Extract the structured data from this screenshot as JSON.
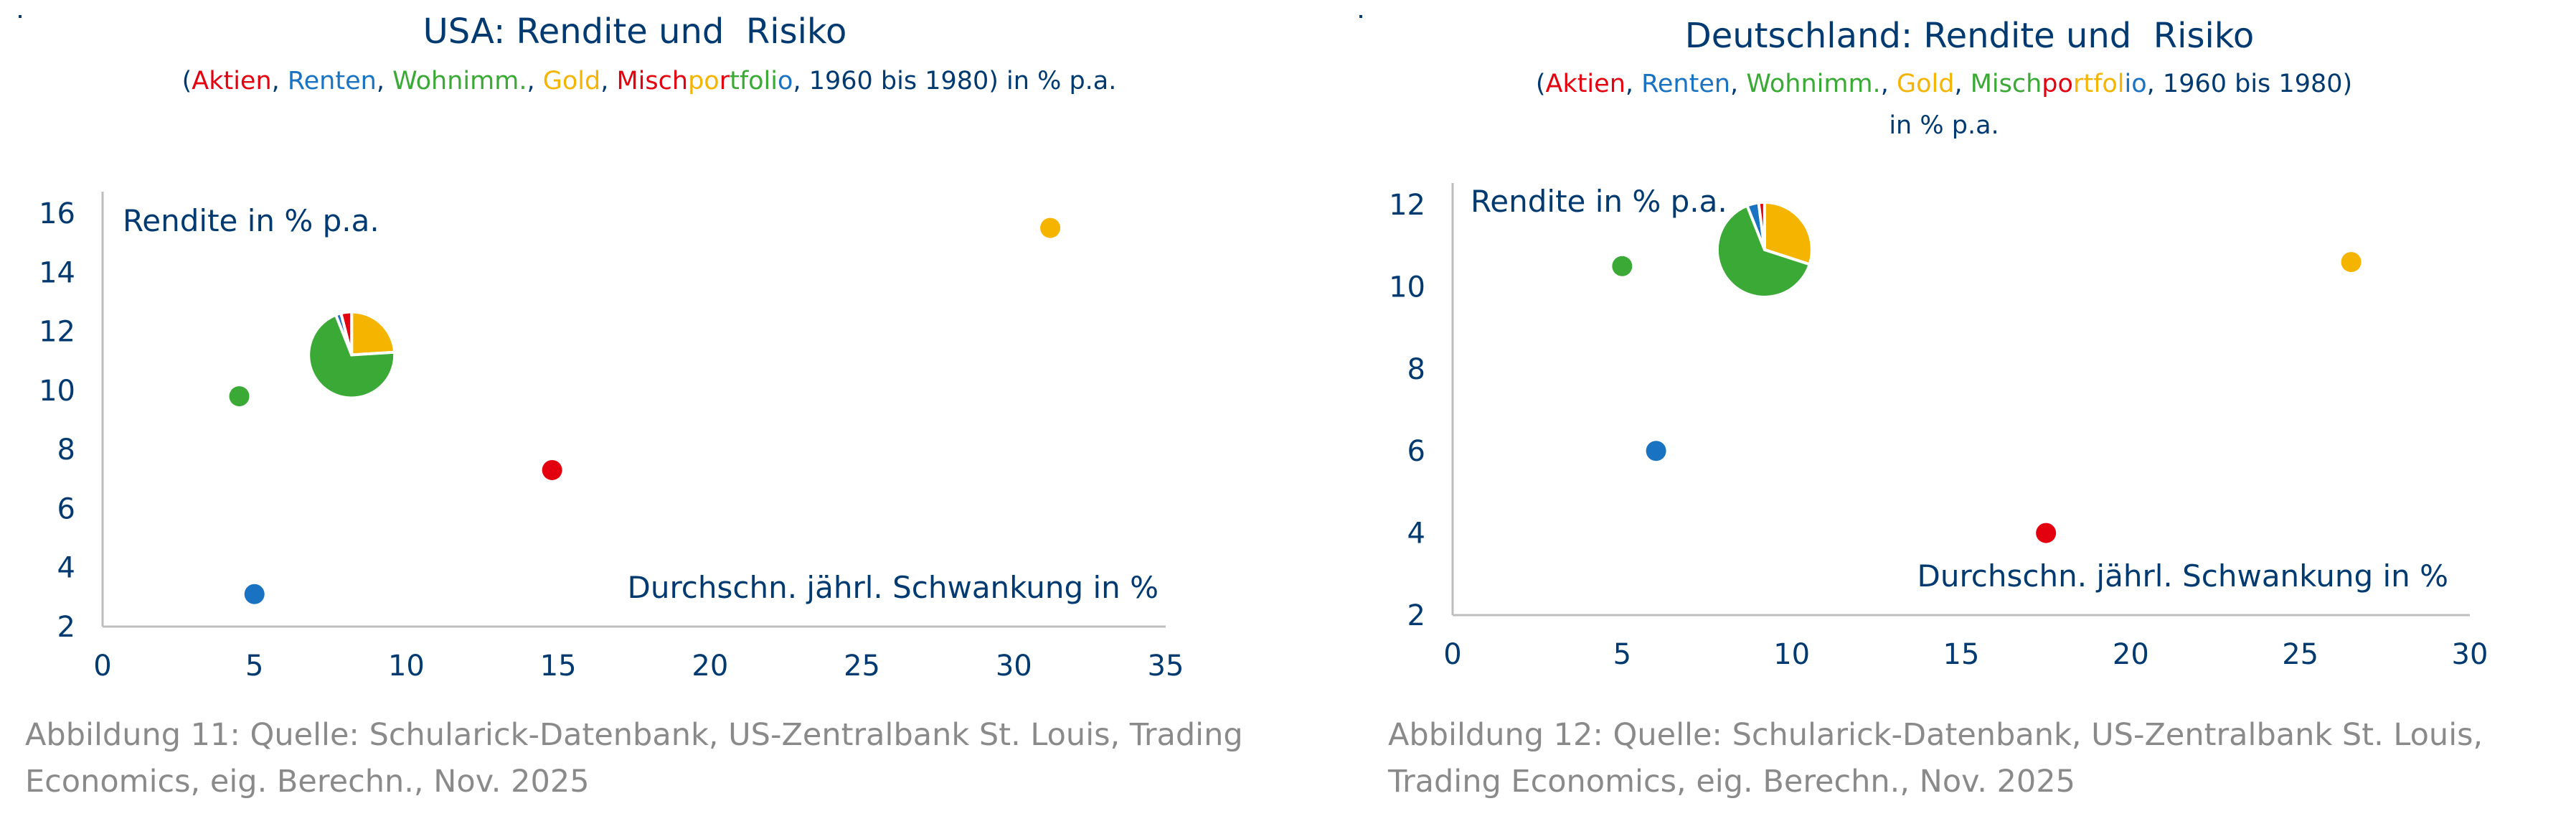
{
  "colors": {
    "aktien": "#e3000f",
    "renten": "#1a73c2",
    "wohnimm": "#3aa935",
    "gold": "#f4b400",
    "axis": "#003a70",
    "caption": "#8a8a8a"
  },
  "left": {
    "title": "USA: Rendite und  Risiko",
    "subtitle": {
      "open": "(",
      "aktien": "Aktien",
      "sep1": ", ",
      "renten": "Renten",
      "sep2": ", ",
      "wohn": "Wohnimm.",
      "sep3": ", ",
      "gold": "Gold",
      "sep4": ", ",
      "misch_a": "Misch",
      "misch_b": "po",
      "misch_c": "r",
      "misch_d": "tfoli",
      "misch_e": "o",
      "rest": ", 1960 bis 1980) in % p.a."
    },
    "caption": "Abbildung 11: Quelle: Schularick-Datenbank, US-Zentralbank St. Louis,  Trading Economics, eig. Berechn., Nov. 2025"
  },
  "right": {
    "title": "Deutschland: Rendite und  Risiko",
    "subtitle": {
      "open": "(",
      "aktien": "Aktien",
      "sep1": ", ",
      "renten": "Renten",
      "sep2": ", ",
      "wohn": "Wohnimm.",
      "sep3": ", ",
      "gold": "Gold",
      "sep4": ", ",
      "misch_a": "Misch",
      "misch_b": "po",
      "misch_c": "rt",
      "misch_d": "fol",
      "misch_e": "io",
      "rest": ", 1960 bis 1980) in % p.a."
    },
    "caption": "Abbildung 12: Quelle: Schularick-Datenbank, US-Zentralbank St. Louis, Trading Economics, eig. Berechn., Nov. 2025"
  },
  "chart_data": [
    {
      "type": "scatter",
      "title": "USA: Rendite und  Risiko",
      "xlabel": "Durchschn. jährl. Schwankung in %",
      "ylabel": "Rendite in % p.a.",
      "xlim": [
        0,
        35
      ],
      "ylim": [
        2,
        16
      ],
      "xticks": [
        "0",
        "5",
        "10",
        "15",
        "20",
        "25",
        "30",
        "35"
      ],
      "yticks": [
        "2",
        "4",
        "6",
        "8",
        "10",
        "12",
        "14",
        "16"
      ],
      "points": [
        {
          "name": "Aktien",
          "x": 14.8,
          "y": 7.3,
          "color": "#e3000f"
        },
        {
          "name": "Renten",
          "x": 5.0,
          "y": 3.1,
          "color": "#1a73c2"
        },
        {
          "name": "Wohnimm.",
          "x": 4.5,
          "y": 9.8,
          "color": "#3aa935"
        },
        {
          "name": "Gold",
          "x": 31.2,
          "y": 15.5,
          "color": "#f4b400"
        }
      ],
      "portfolio": {
        "name": "Mischportfolio",
        "x": 8.2,
        "y": 11.2,
        "weights": [
          {
            "name": "Gold",
            "share": 0.24,
            "color": "#f4b400"
          },
          {
            "name": "Wohnimm.",
            "share": 0.7,
            "color": "#3aa935"
          },
          {
            "name": "Renten",
            "share": 0.02,
            "color": "#1a73c2"
          },
          {
            "name": "Aktien",
            "share": 0.04,
            "color": "#e3000f"
          }
        ]
      }
    },
    {
      "type": "scatter",
      "title": "Deutschland: Rendite und  Risiko",
      "xlabel": "Durchschn. jährl. Schwankung in %",
      "ylabel": "Rendite in % p.a.",
      "xlim": [
        0,
        30
      ],
      "ylim": [
        2,
        12
      ],
      "xticks": [
        "0",
        "5",
        "10",
        "15",
        "20",
        "25",
        "30"
      ],
      "yticks": [
        "2",
        "4",
        "6",
        "8",
        "10",
        "12"
      ],
      "points": [
        {
          "name": "Aktien",
          "x": 17.5,
          "y": 4.0,
          "color": "#e3000f"
        },
        {
          "name": "Renten",
          "x": 6.0,
          "y": 6.0,
          "color": "#1a73c2"
        },
        {
          "name": "Wohnimm.",
          "x": 5.0,
          "y": 10.5,
          "color": "#3aa935"
        },
        {
          "name": "Gold",
          "x": 26.5,
          "y": 10.6,
          "color": "#f4b400"
        }
      ],
      "portfolio": {
        "name": "Mischportfolio",
        "x": 9.2,
        "y": 10.9,
        "weights": [
          {
            "name": "Gold",
            "share": 0.3,
            "color": "#f4b400"
          },
          {
            "name": "Wohnimm.",
            "share": 0.64,
            "color": "#3aa935"
          },
          {
            "name": "Renten",
            "share": 0.04,
            "color": "#1a73c2"
          },
          {
            "name": "Aktien",
            "share": 0.02,
            "color": "#e3000f"
          }
        ]
      }
    }
  ]
}
